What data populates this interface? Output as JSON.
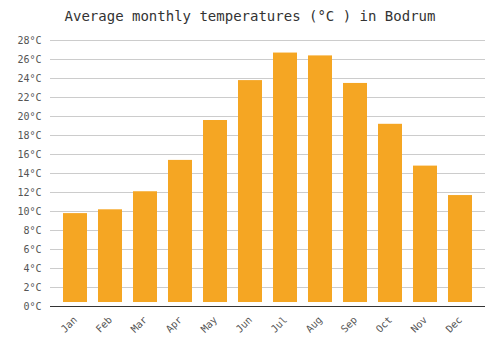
{
  "chart_data": {
    "type": "bar",
    "title": "Average monthly temperatures (°C ) in Bodrum",
    "categories": [
      "Jan",
      "Feb",
      "Mar",
      "Apr",
      "May",
      "Jun",
      "Jul",
      "Aug",
      "Sep",
      "Oct",
      "Nov",
      "Dec"
    ],
    "values": [
      10.2,
      10.6,
      12.5,
      15.8,
      20.0,
      24.2,
      27.1,
      26.8,
      23.9,
      19.6,
      15.2,
      12.1
    ],
    "color": "#F5A623",
    "ylim": [
      0,
      28
    ],
    "yticks": [
      {
        "value": 0,
        "label": "0°C"
      },
      {
        "value": 2,
        "label": "2°C"
      },
      {
        "value": 4,
        "label": "4°C"
      },
      {
        "value": 6,
        "label": "6°C"
      },
      {
        "value": 8,
        "label": "8°C"
      },
      {
        "value": 10,
        "label": "10°C"
      },
      {
        "value": 12,
        "label": "12°C"
      },
      {
        "value": 14,
        "label": "14°C"
      },
      {
        "value": 16,
        "label": "16°C"
      },
      {
        "value": 18,
        "label": "18°C"
      },
      {
        "value": 20,
        "label": "20°C"
      },
      {
        "value": 22,
        "label": "22°C"
      },
      {
        "value": 24,
        "label": "24°C"
      },
      {
        "value": 26,
        "label": "26°C"
      },
      {
        "value": 28,
        "label": "28°C"
      }
    ],
    "grid": true
  }
}
